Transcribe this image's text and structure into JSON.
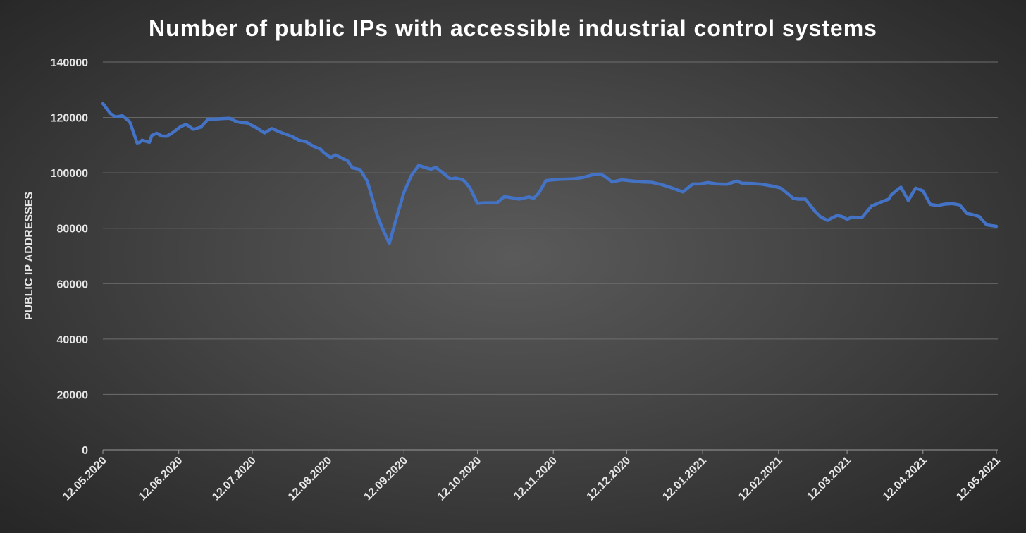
{
  "chart_data": {
    "type": "line",
    "title": "Number of public IPs with accessible industrial control systems",
    "xlabel": "",
    "ylabel": "PUBLIC IP ADDRESSES",
    "ylim": [
      0,
      140000
    ],
    "y_ticks": [
      0,
      20000,
      40000,
      60000,
      80000,
      100000,
      120000,
      140000
    ],
    "x_range": [
      "12.05.2020",
      "12.05.2021"
    ],
    "x_ticks": [
      "12.05.2020",
      "12.06.2020",
      "12.07.2020",
      "12.08.2020",
      "12.09.2020",
      "12.10.2020",
      "12.11.2020",
      "12.12.2020",
      "12.01.2021",
      "12.02.2021",
      "12.03.2021",
      "12.04.2021",
      "12.05.2021"
    ],
    "grid": true,
    "legend": "none",
    "line_color": "#4472C4",
    "series": [
      {
        "x": [
          "2020-05-12",
          "2020-05-15",
          "2020-05-17",
          "2020-05-20",
          "2020-05-23",
          "2020-05-26",
          "2020-05-27",
          "2020-05-28",
          "2020-05-31",
          "2020-06-01",
          "2020-06-03",
          "2020-06-05",
          "2020-06-07",
          "2020-06-09",
          "2020-06-13",
          "2020-06-15",
          "2020-06-18",
          "2020-06-21",
          "2020-06-24",
          "2020-06-27",
          "2020-06-30",
          "2020-07-03",
          "2020-07-05",
          "2020-07-07",
          "2020-07-10",
          "2020-07-14",
          "2020-07-17",
          "2020-07-20",
          "2020-07-24",
          "2020-07-28",
          "2020-07-31",
          "2020-08-03",
          "2020-08-06",
          "2020-08-09",
          "2020-08-10",
          "2020-08-13",
          "2020-08-15",
          "2020-08-20",
          "2020-08-22",
          "2020-08-25",
          "2020-08-28",
          "2020-08-30",
          "2020-09-01",
          "2020-09-03",
          "2020-09-06",
          "2020-09-09",
          "2020-09-12",
          "2020-09-15",
          "2020-09-18",
          "2020-09-20",
          "2020-09-21",
          "2020-09-23",
          "2020-09-25",
          "2020-10-01",
          "2020-10-03",
          "2020-10-06",
          "2020-10-07",
          "2020-10-09",
          "2020-10-12",
          "2020-10-15",
          "2020-10-20",
          "2020-10-23",
          "2020-10-26",
          "2020-10-29",
          "2020-11-02",
          "2020-11-04",
          "2020-11-06",
          "2020-11-09",
          "2020-11-12",
          "2020-11-15",
          "2020-11-20",
          "2020-11-24",
          "2020-11-28",
          "2020-12-01",
          "2020-12-03",
          "2020-12-06",
          "2020-12-10",
          "2020-12-15",
          "2020-12-18",
          "2020-12-22",
          "2020-12-26",
          "2020-12-30",
          "2021-01-04",
          "2021-01-08",
          "2021-01-11",
          "2021-01-14",
          "2021-01-18",
          "2021-01-22",
          "2021-01-26",
          "2021-01-28",
          "2021-02-01",
          "2021-02-05",
          "2021-02-09",
          "2021-02-13",
          "2021-02-18",
          "2021-02-20",
          "2021-02-23",
          "2021-02-27",
          "2021-03-01",
          "2021-03-04",
          "2021-03-06",
          "2021-03-08",
          "2021-03-10",
          "2021-03-12",
          "2021-03-14",
          "2021-03-18",
          "2021-03-22",
          "2021-03-26",
          "2021-03-29",
          "2021-03-30",
          "2021-04-01",
          "2021-04-03",
          "2021-04-06",
          "2021-04-09",
          "2021-04-12",
          "2021-04-15",
          "2021-04-18",
          "2021-04-21",
          "2021-04-24",
          "2021-04-27",
          "2021-04-30",
          "2021-05-02",
          "2021-05-05",
          "2021-05-08",
          "2021-05-12"
        ],
        "y": [
          125000,
          121500,
          120200,
          120600,
          118400,
          110800,
          111000,
          111800,
          111000,
          113500,
          114300,
          113300,
          113200,
          114200,
          116800,
          117500,
          115700,
          116500,
          119400,
          119400,
          119600,
          119700,
          118700,
          118200,
          118000,
          116100,
          114400,
          116000,
          114500,
          113200,
          111800,
          111200,
          109600,
          108500,
          107500,
          105500,
          106500,
          104300,
          101800,
          101200,
          97000,
          91000,
          84800,
          80300,
          74500,
          84000,
          93000,
          99000,
          102700,
          102100,
          101800,
          101300,
          102000,
          97800,
          98100,
          97500,
          96800,
          94500,
          89000,
          89200,
          89200,
          91400,
          91000,
          90500,
          91300,
          90800,
          92600,
          97200,
          97500,
          97700,
          97800,
          98300,
          99300,
          99600,
          98800,
          96700,
          97500,
          97000,
          96700,
          96600,
          95800,
          94700,
          93100,
          96000,
          96000,
          96500,
          96000,
          95900,
          97000,
          96300,
          96200,
          95900,
          95300,
          94500,
          90800,
          90500,
          90500,
          86000,
          84200,
          82800,
          83800,
          84600,
          84200,
          83200,
          84000,
          83800,
          88000,
          89500,
          90500,
          92000,
          93500,
          94800,
          90000,
          94500,
          93500,
          88600,
          88200,
          88700,
          88900,
          88400,
          85300,
          85000,
          84200,
          81200,
          80700
        ]
      }
    ]
  }
}
